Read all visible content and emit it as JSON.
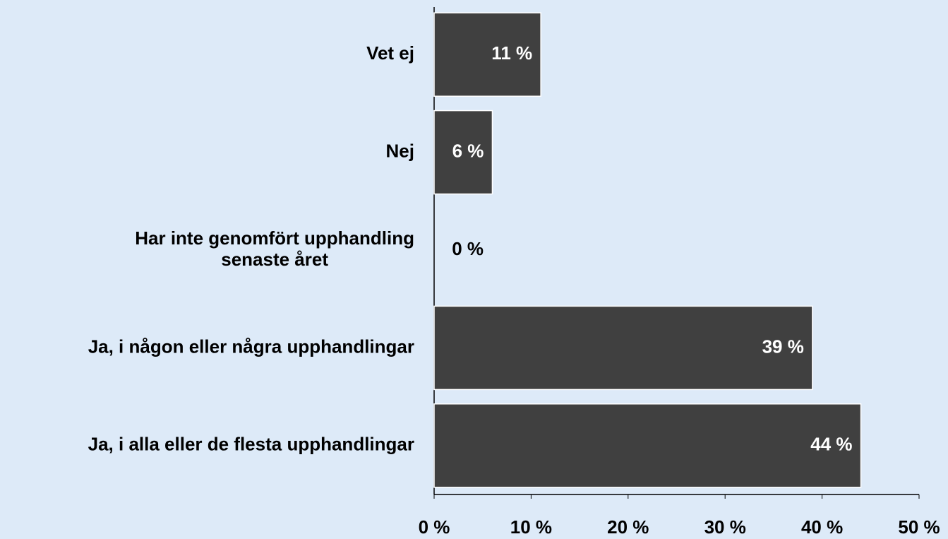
{
  "chart_data": {
    "type": "hbar",
    "categories": [
      "Vet ej",
      "Nej",
      "Har inte genomfört upphandling\nsenaste året",
      "Ja, i någon eller några upphandlingar",
      "Ja, i alla eller de flesta upphandlingar"
    ],
    "values": [
      11,
      6,
      0,
      39,
      44
    ],
    "value_labels": [
      "11 %",
      "6 %",
      "0 %",
      "39 %",
      "44 %"
    ],
    "color": "#404040",
    "xlim": [
      0,
      50
    ],
    "xticks": [
      {
        "value": 0,
        "label": "0 %"
      },
      {
        "value": 10,
        "label": "10 %"
      },
      {
        "value": 20,
        "label": "20 %"
      },
      {
        "value": 30,
        "label": "30 %"
      },
      {
        "value": 40,
        "label": "40 %"
      },
      {
        "value": 50,
        "label": "50 %"
      }
    ]
  }
}
